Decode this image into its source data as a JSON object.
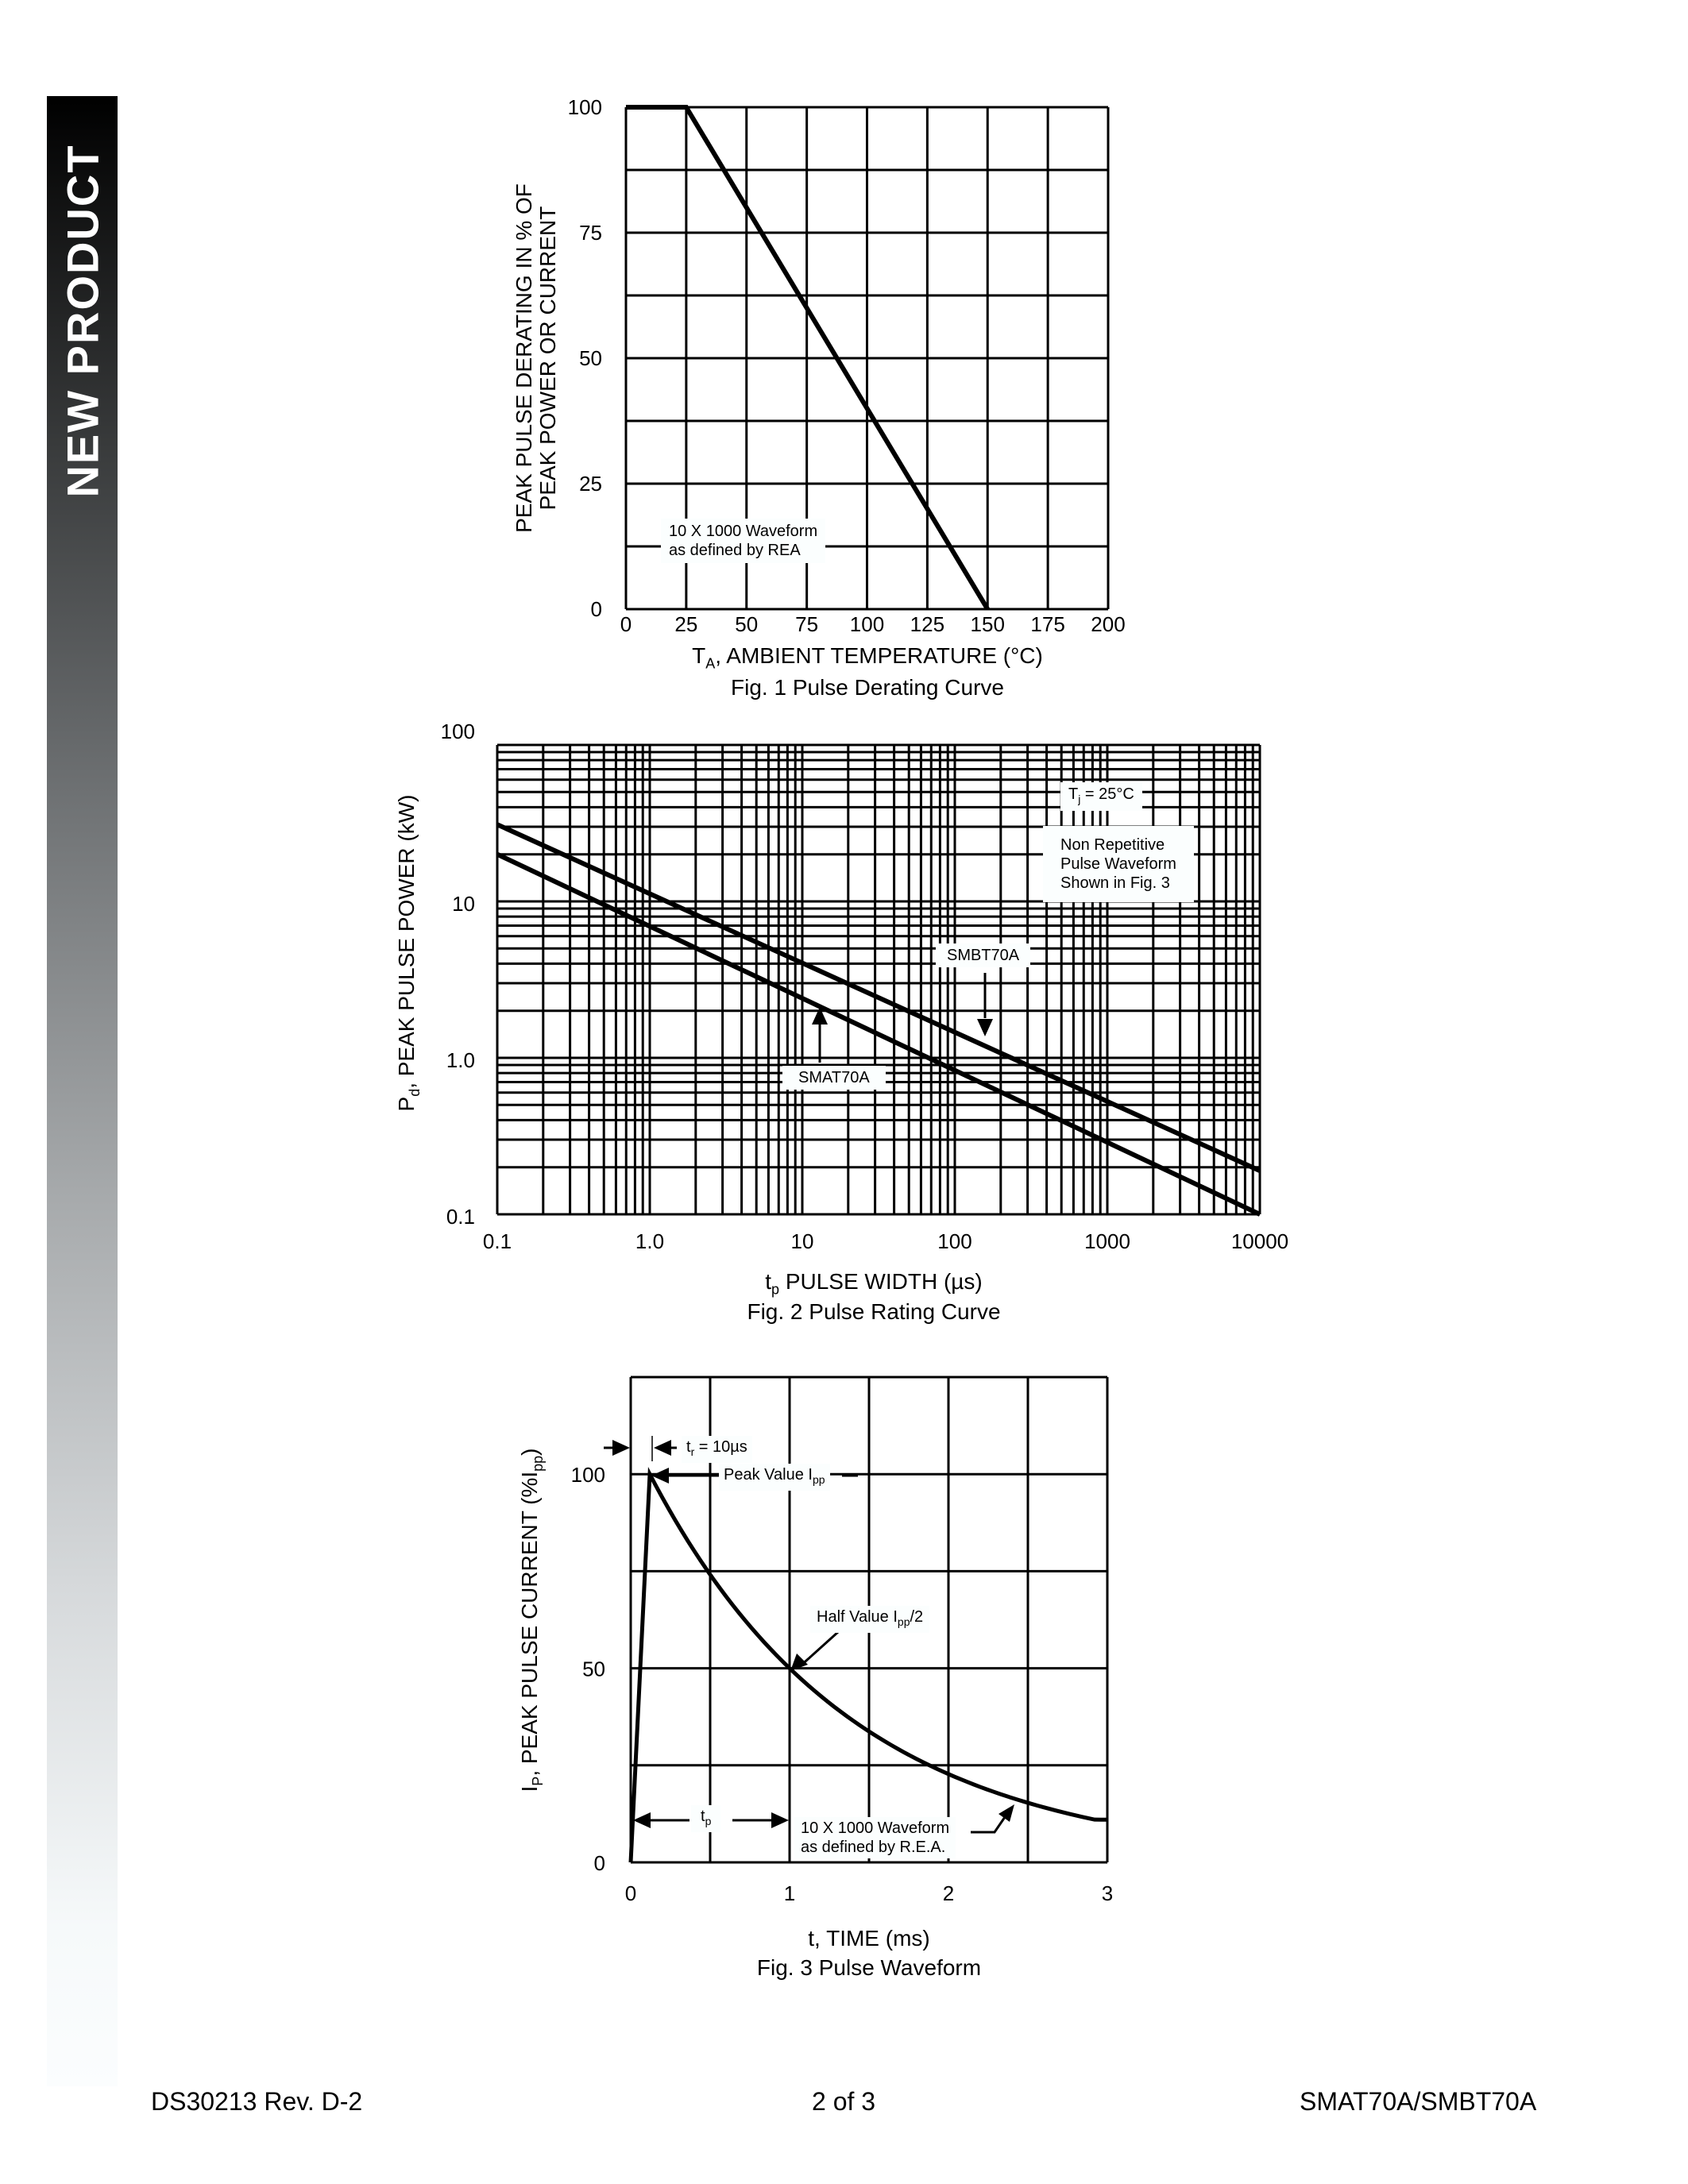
{
  "banner": {
    "text": "NEW PRODUCT"
  },
  "footer": {
    "doc_id": "DS30213 Rev. D-2",
    "page": "2 of 3",
    "part": "SMAT70A/SMBT70A"
  },
  "figures": {
    "fig1": {
      "ylabel_line1": "PEAK PULSE DERATING IN % OF",
      "ylabel_line2": "PEAK POWER OR CURRENT",
      "xlabel": "T",
      "xlabel_sub": "A",
      "xlabel_rest": ", AMBIENT TEMPERATURE (°C)",
      "caption": "Fig. 1  Pulse Derating Curve",
      "note_line1": "10 X 1000 Waveform",
      "note_line2": "as defined by REA"
    },
    "fig2": {
      "ylabel_pre": "P",
      "ylabel_sub": "d",
      "ylabel_rest": ", PEAK PULSE POWER (kW)",
      "xlabel_pre": "t",
      "xlabel_sub": "p",
      "xlabel_rest": " PULSE WIDTH (µs)",
      "caption": "Fig. 2 Pulse Rating Curve",
      "note_tj_pre": "T",
      "note_tj_sub": "j",
      "note_tj_rest": " = 25°C",
      "note_wave_line1": "Non Repetitive",
      "note_wave_line2": "Pulse Waveform",
      "note_wave_line3": "Shown in Fig. 3",
      "label_smbt": "SMBT70A",
      "label_smat": "SMAT70A"
    },
    "fig3": {
      "ylabel_pre": "I",
      "ylabel_sub": "P",
      "ylabel_mid": ", PEAK PULSE CURRENT (%I",
      "ylabel_sub2": "pp",
      "ylabel_end": ")",
      "xlabel": "t, TIME (ms)",
      "caption": "Fig. 3  Pulse Waveform",
      "tr_label_pre": "t",
      "tr_label_sub": "r",
      "tr_label_rest": " = 10µs",
      "peak_pre": "Peak Value I",
      "peak_sub": "pp",
      "half_pre": "Half Value I",
      "half_sub": "pp",
      "half_rest": "/2",
      "tp_pre": "t",
      "tp_sub": "p",
      "note_line1": "10 X 1000 Waveform",
      "note_line2": "as defined by R.E.A."
    }
  },
  "chart_data": [
    {
      "type": "line",
      "title": "Fig. 1  Pulse Derating Curve",
      "xlabel": "TA, AMBIENT TEMPERATURE (°C)",
      "ylabel": "PEAK PULSE DERATING IN % OF PEAK POWER OR CURRENT",
      "x_ticks": [
        "0",
        "25",
        "50",
        "75",
        "100",
        "125",
        "150",
        "175",
        "200"
      ],
      "y_ticks": [
        "0",
        "25",
        "50",
        "75",
        "100"
      ],
      "xlim": [
        0,
        200
      ],
      "ylim": [
        0,
        100
      ],
      "grid": true,
      "series": [
        {
          "name": "Derating",
          "x": [
            0,
            25,
            150
          ],
          "y": [
            100,
            100,
            0
          ]
        }
      ],
      "annotations": [
        "10 X 1000 Waveform as defined by REA"
      ]
    },
    {
      "type": "line",
      "title": "Fig. 2 Pulse Rating Curve",
      "xlabel": "tp PULSE WIDTH (µs)",
      "ylabel": "Pd, PEAK PULSE POWER (kW)",
      "x_scale": "log",
      "y_scale": "log",
      "x_ticks": [
        "0.1",
        "1.0",
        "10",
        "100",
        "1000",
        "10000"
      ],
      "y_ticks": [
        "0.1",
        "1.0",
        "10",
        "100"
      ],
      "xlim": [
        0.1,
        10000
      ],
      "ylim": [
        0.1,
        100
      ],
      "grid": true,
      "series": [
        {
          "name": "SMBT70A",
          "x": [
            0.1,
            10000
          ],
          "y": [
            31,
            0.19
          ]
        },
        {
          "name": "SMAT70A",
          "x": [
            0.1,
            10000
          ],
          "y": [
            20,
            0.1
          ]
        }
      ],
      "annotations": [
        "Tj = 25°C",
        "Non Repetitive Pulse Waveform Shown in Fig. 3"
      ]
    },
    {
      "type": "line",
      "title": "Fig. 3  Pulse Waveform",
      "xlabel": "t, TIME (ms)",
      "ylabel": "IP, PEAK PULSE CURRENT (%Ipp)",
      "x_ticks": [
        "0",
        "1",
        "2",
        "3"
      ],
      "y_ticks": [
        "0",
        "50",
        "100"
      ],
      "xlim": [
        0,
        3
      ],
      "ylim": [
        0,
        125
      ],
      "grid": true,
      "series": [
        {
          "name": "10 X 1000 Waveform",
          "x": [
            0,
            0.12,
            0.5,
            1.0,
            1.5,
            2.0,
            2.5,
            3.0
          ],
          "y": [
            0,
            100,
            75,
            50,
            33,
            21,
            13,
            11
          ]
        }
      ],
      "annotations": [
        "tr = 10µs",
        "Peak Value Ipp",
        "Half Value Ipp/2",
        "tp",
        "10 X 1000 Waveform as defined by R.E.A."
      ]
    }
  ]
}
